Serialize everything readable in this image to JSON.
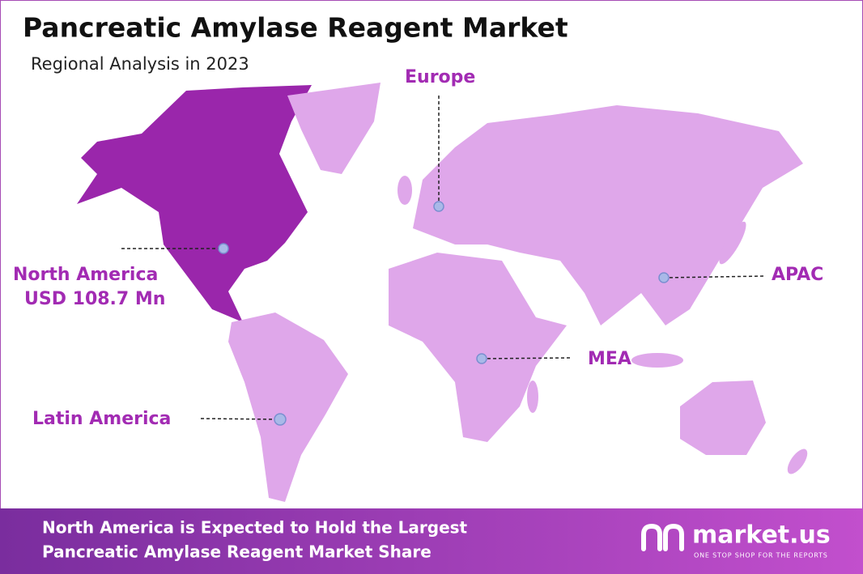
{
  "header": {
    "title": "Pancreatic Amylase Reagent Market",
    "subtitle": "Regional Analysis in 2023"
  },
  "regions": [
    {
      "label": "North America",
      "value": "USD 108.7 Mn"
    },
    {
      "label": "Europe"
    },
    {
      "label": "APAC"
    },
    {
      "label": "MEA"
    },
    {
      "label": "Latin America"
    }
  ],
  "footer": {
    "lines": [
      "North America is Expected to Hold the Largest",
      "Pancreatic Amylase Reagent Market Share"
    ]
  },
  "brand": {
    "name": "market.us",
    "tagline": "ONE STOP SHOP FOR THE REPORTS"
  }
}
